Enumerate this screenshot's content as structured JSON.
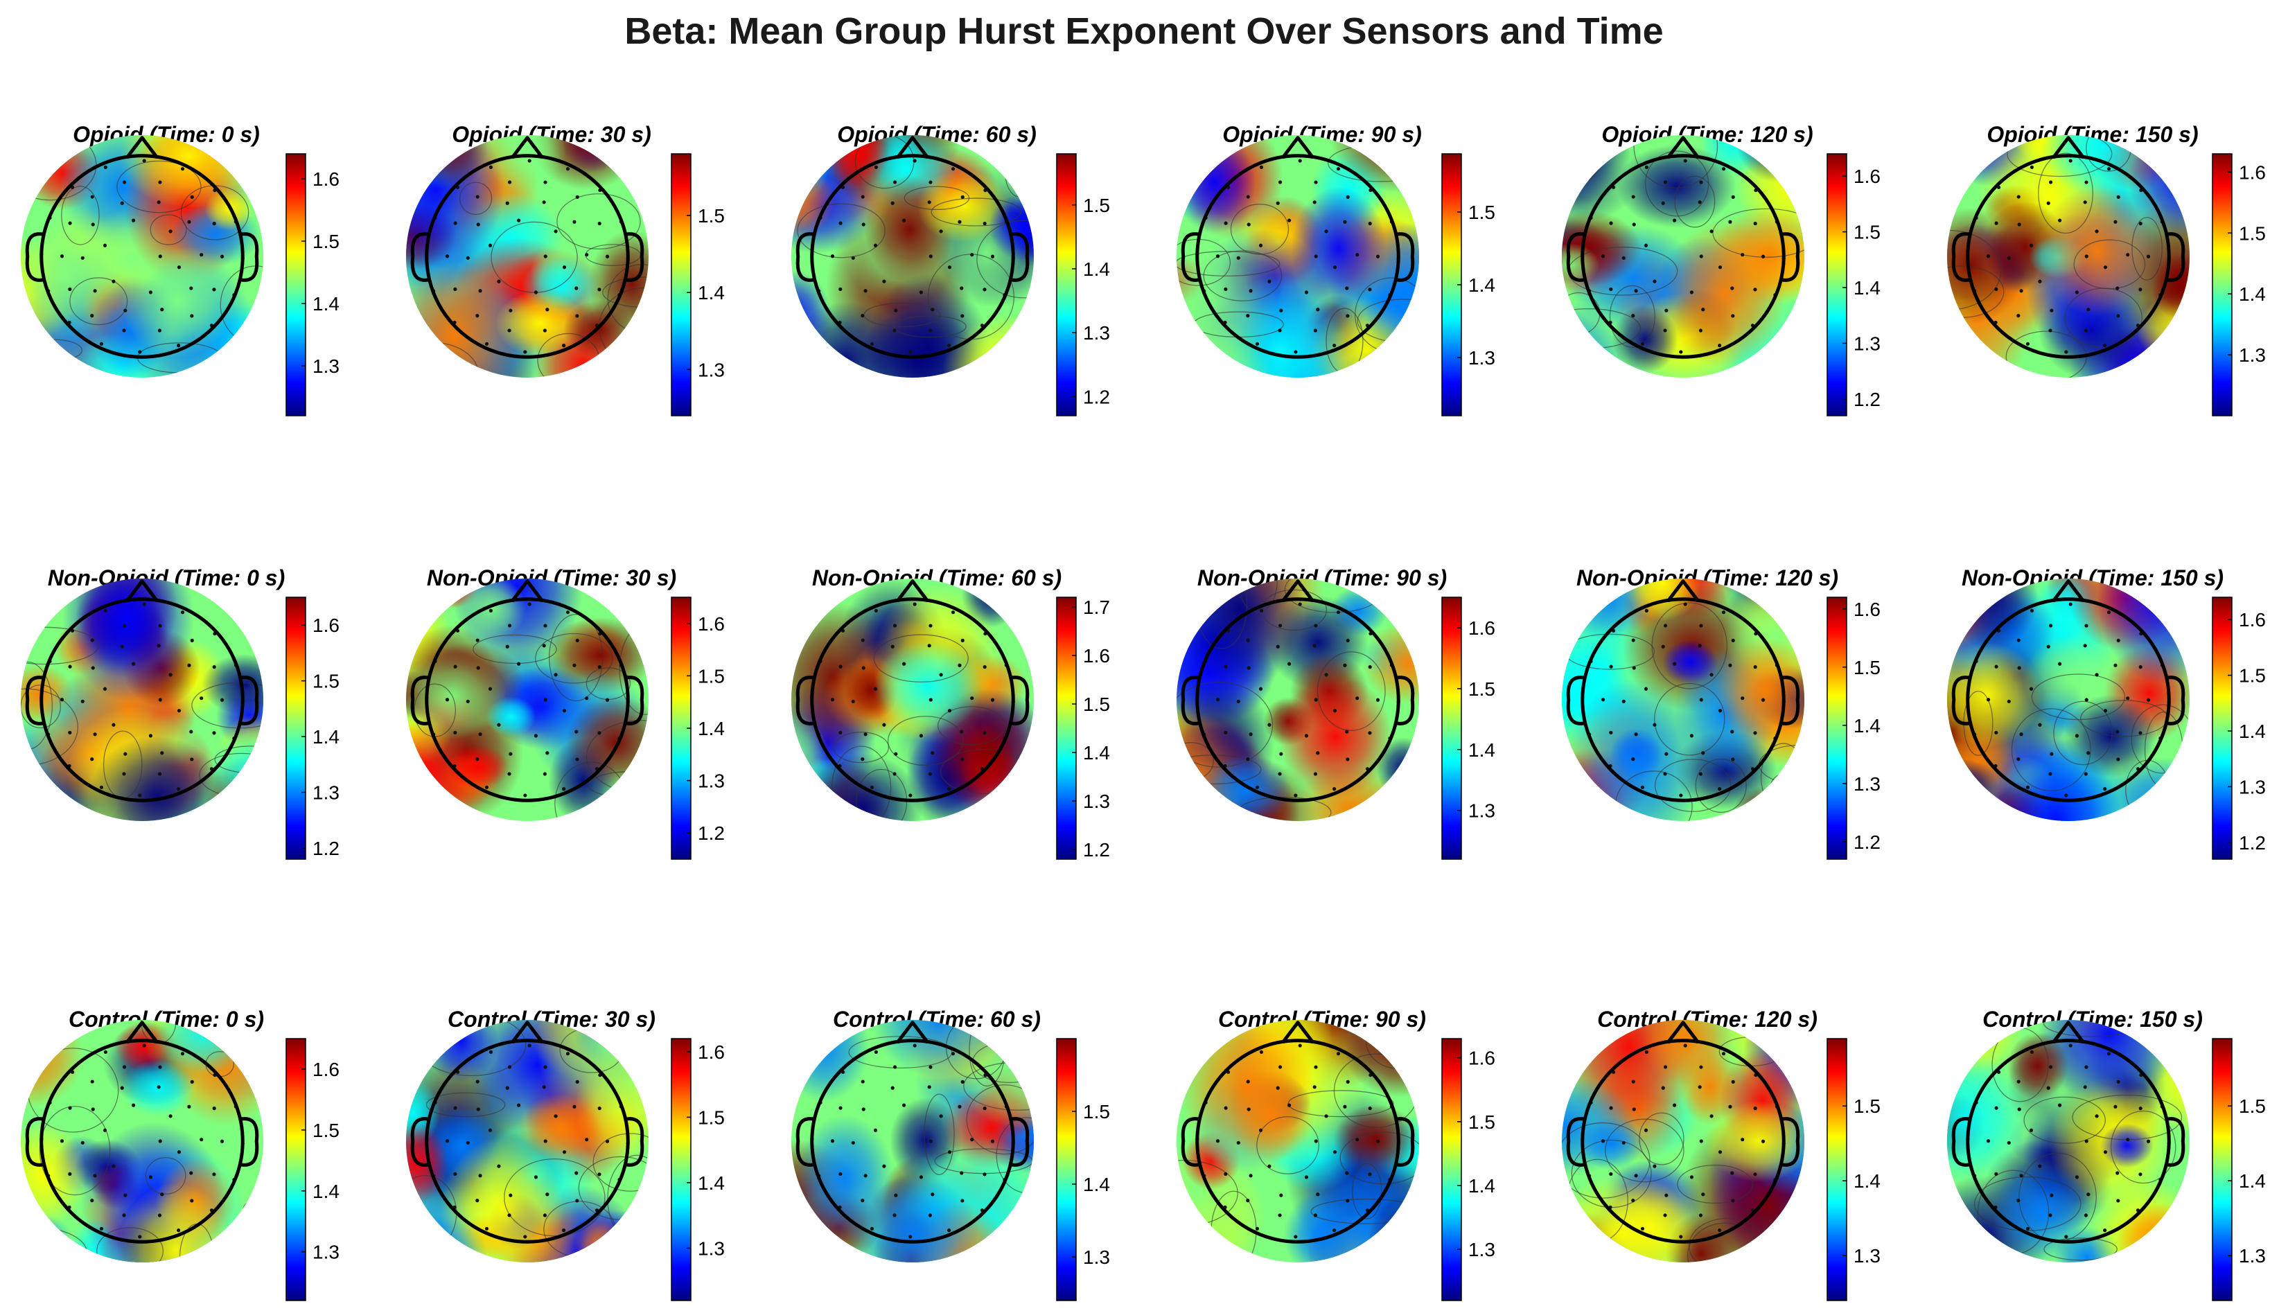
{
  "title": "Beta: Mean Group Hurst Exponent Over Sensors and Time",
  "colormap": [
    "#00007f",
    "#0000ff",
    "#007fff",
    "#00ffff",
    "#7fff7f",
    "#ffff00",
    "#ff7f00",
    "#ff0000",
    "#7f0000"
  ],
  "outline_color": "#000000",
  "rows": [
    {
      "group": "Opioid",
      "panels": [
        {
          "title": "Opioid (Time: 0 s)",
          "ticks": [
            "1.6",
            "1.5",
            "1.4",
            "1.3"
          ],
          "tick_values": [
            1.6,
            1.5,
            1.4,
            1.3
          ],
          "clim": [
            1.22,
            1.64
          ]
        },
        {
          "title": "Opioid (Time: 30 s)",
          "ticks": [
            "1.5",
            "1.4",
            "1.3"
          ],
          "tick_values": [
            1.5,
            1.4,
            1.3
          ],
          "clim": [
            1.24,
            1.58
          ]
        },
        {
          "title": "Opioid (Time: 60 s)",
          "ticks": [
            "1.5",
            "1.4",
            "1.3",
            "1.2"
          ],
          "tick_values": [
            1.5,
            1.4,
            1.3,
            1.2
          ],
          "clim": [
            1.17,
            1.58
          ]
        },
        {
          "title": "Opioid (Time: 90 s)",
          "ticks": [
            "1.5",
            "1.4",
            "1.3"
          ],
          "tick_values": [
            1.5,
            1.4,
            1.3
          ],
          "clim": [
            1.22,
            1.58
          ]
        },
        {
          "title": "Opioid (Time: 120 s)",
          "ticks": [
            "1.6",
            "1.5",
            "1.4",
            "1.3",
            "1.2"
          ],
          "tick_values": [
            1.6,
            1.5,
            1.4,
            1.3,
            1.2
          ],
          "clim": [
            1.17,
            1.64
          ]
        },
        {
          "title": "Opioid (Time: 150 s)",
          "ticks": [
            "1.6",
            "1.5",
            "1.4",
            "1.3"
          ],
          "tick_values": [
            1.6,
            1.5,
            1.4,
            1.3
          ],
          "clim": [
            1.2,
            1.63
          ]
        }
      ]
    },
    {
      "group": "Non-Opioid",
      "panels": [
        {
          "title": "Non-Opioid (Time: 0 s)",
          "ticks": [
            "1.6",
            "1.5",
            "1.4",
            "1.3",
            "1.2"
          ],
          "tick_values": [
            1.6,
            1.5,
            1.4,
            1.3,
            1.2
          ],
          "clim": [
            1.18,
            1.65
          ]
        },
        {
          "title": "Non-Opioid (Time: 30 s)",
          "ticks": [
            "1.6",
            "1.5",
            "1.4",
            "1.3",
            "1.2"
          ],
          "tick_values": [
            1.6,
            1.5,
            1.4,
            1.3,
            1.2
          ],
          "clim": [
            1.15,
            1.65
          ]
        },
        {
          "title": "Non-Opioid (Time: 60 s)",
          "ticks": [
            "1.7",
            "1.6",
            "1.5",
            "1.4",
            "1.3",
            "1.2"
          ],
          "tick_values": [
            1.7,
            1.6,
            1.5,
            1.4,
            1.3,
            1.2
          ],
          "clim": [
            1.18,
            1.72
          ]
        },
        {
          "title": "Non-Opioid (Time: 90 s)",
          "ticks": [
            "1.6",
            "1.5",
            "1.4",
            "1.3"
          ],
          "tick_values": [
            1.6,
            1.5,
            1.4,
            1.3
          ],
          "clim": [
            1.22,
            1.65
          ]
        },
        {
          "title": "Non-Opioid (Time: 120 s)",
          "ticks": [
            "1.6",
            "1.5",
            "1.4",
            "1.3",
            "1.2"
          ],
          "tick_values": [
            1.6,
            1.5,
            1.4,
            1.3,
            1.2
          ],
          "clim": [
            1.17,
            1.62
          ]
        },
        {
          "title": "Non-Opioid (Time: 150 s)",
          "ticks": [
            "1.6",
            "1.5",
            "1.4",
            "1.3",
            "1.2"
          ],
          "tick_values": [
            1.6,
            1.5,
            1.4,
            1.3,
            1.2
          ],
          "clim": [
            1.17,
            1.64
          ]
        }
      ]
    },
    {
      "group": "Control",
      "panels": [
        {
          "title": "Control (Time: 0 s)",
          "ticks": [
            "1.6",
            "1.5",
            "1.4",
            "1.3"
          ],
          "tick_values": [
            1.6,
            1.5,
            1.4,
            1.3
          ],
          "clim": [
            1.22,
            1.65
          ]
        },
        {
          "title": "Control (Time: 30 s)",
          "ticks": [
            "1.6",
            "1.5",
            "1.4",
            "1.3"
          ],
          "tick_values": [
            1.6,
            1.5,
            1.4,
            1.3
          ],
          "clim": [
            1.22,
            1.62
          ]
        },
        {
          "title": "Control (Time: 60 s)",
          "ticks": [
            "1.5",
            "1.4",
            "1.3"
          ],
          "tick_values": [
            1.5,
            1.4,
            1.3
          ],
          "clim": [
            1.24,
            1.6
          ]
        },
        {
          "title": "Control (Time: 90 s)",
          "ticks": [
            "1.6",
            "1.5",
            "1.4",
            "1.3"
          ],
          "tick_values": [
            1.6,
            1.5,
            1.4,
            1.3
          ],
          "clim": [
            1.22,
            1.63
          ]
        },
        {
          "title": "Control (Time: 120 s)",
          "ticks": [
            "1.5",
            "1.4",
            "1.3"
          ],
          "tick_values": [
            1.5,
            1.4,
            1.3
          ],
          "clim": [
            1.24,
            1.59
          ]
        },
        {
          "title": "Control (Time: 150 s)",
          "ticks": [
            "1.5",
            "1.4",
            "1.3"
          ],
          "tick_values": [
            1.5,
            1.4,
            1.3
          ],
          "clim": [
            1.24,
            1.59
          ]
        }
      ]
    }
  ]
}
